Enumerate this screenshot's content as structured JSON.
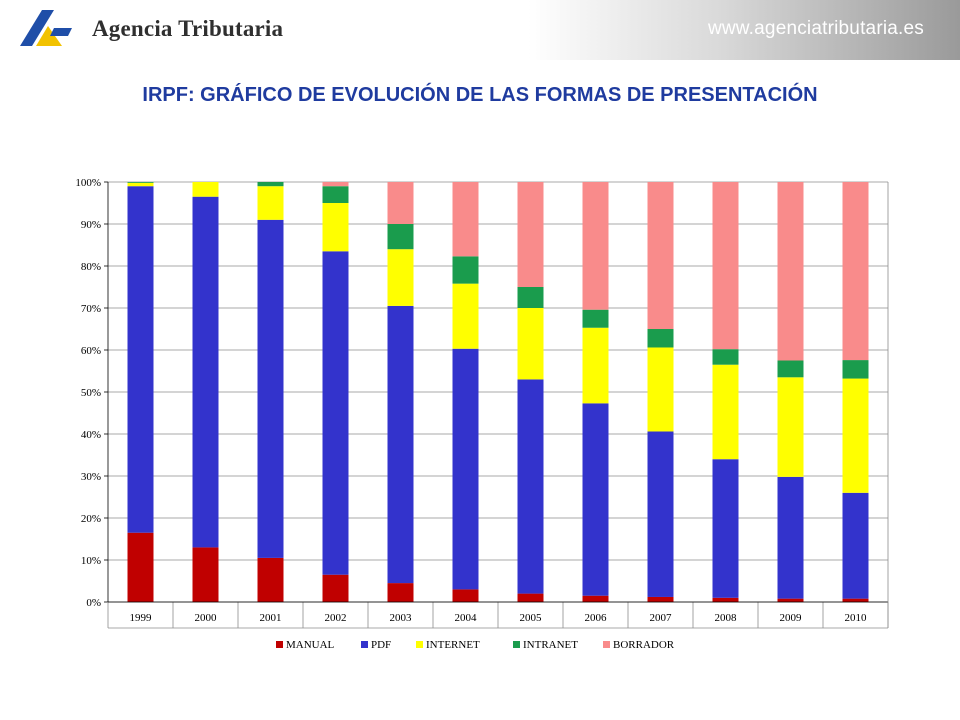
{
  "header": {
    "agency_name": "Agencia Tributaria",
    "site_url": "www.agenciatributaria.es",
    "logo_icon": "agencia-tributaria-logo-icon"
  },
  "chart_data": {
    "type": "bar",
    "stacked": "percent",
    "title": "IRPF: GRÁFICO DE EVOLUCIÓN DE LAS FORMAS DE PRESENTACIÓN",
    "categories": [
      "1999",
      "2000",
      "2001",
      "2002",
      "2003",
      "2004",
      "2005",
      "2006",
      "2007",
      "2008",
      "2009",
      "2010"
    ],
    "ylim": [
      0,
      100
    ],
    "yticks": [
      "0%",
      "10%",
      "20%",
      "30%",
      "40%",
      "50%",
      "60%",
      "70%",
      "80%",
      "90%",
      "100%"
    ],
    "grid": true,
    "legend_position": "bottom",
    "series": [
      {
        "name": "MANUAL",
        "color": "#c00000",
        "values": [
          16.5,
          13,
          10.5,
          6.5,
          4.5,
          3,
          2,
          1.5,
          1.2,
          1,
          0.8,
          0.8
        ]
      },
      {
        "name": "PDF",
        "color": "#3333cc",
        "values": [
          82.5,
          83.5,
          80.5,
          77,
          66,
          57.3,
          51,
          45.8,
          39.4,
          33,
          29,
          25.2
        ]
      },
      {
        "name": "INTERNET",
        "color": "#ffff00",
        "values": [
          0.8,
          3.5,
          8,
          11.5,
          13.5,
          15.5,
          17,
          18,
          20,
          22.5,
          23.7,
          27.2
        ]
      },
      {
        "name": "INTRANET",
        "color": "#1a9c4d",
        "values": [
          0.2,
          0,
          1,
          4,
          6,
          6.5,
          5,
          4.3,
          4.4,
          3.7,
          4,
          4.4
        ]
      },
      {
        "name": "BORRADOR",
        "color": "#f98b8b",
        "values": [
          0,
          0,
          0,
          1,
          10,
          17.7,
          25,
          30.4,
          35,
          39.8,
          42.5,
          42.4
        ]
      }
    ]
  }
}
